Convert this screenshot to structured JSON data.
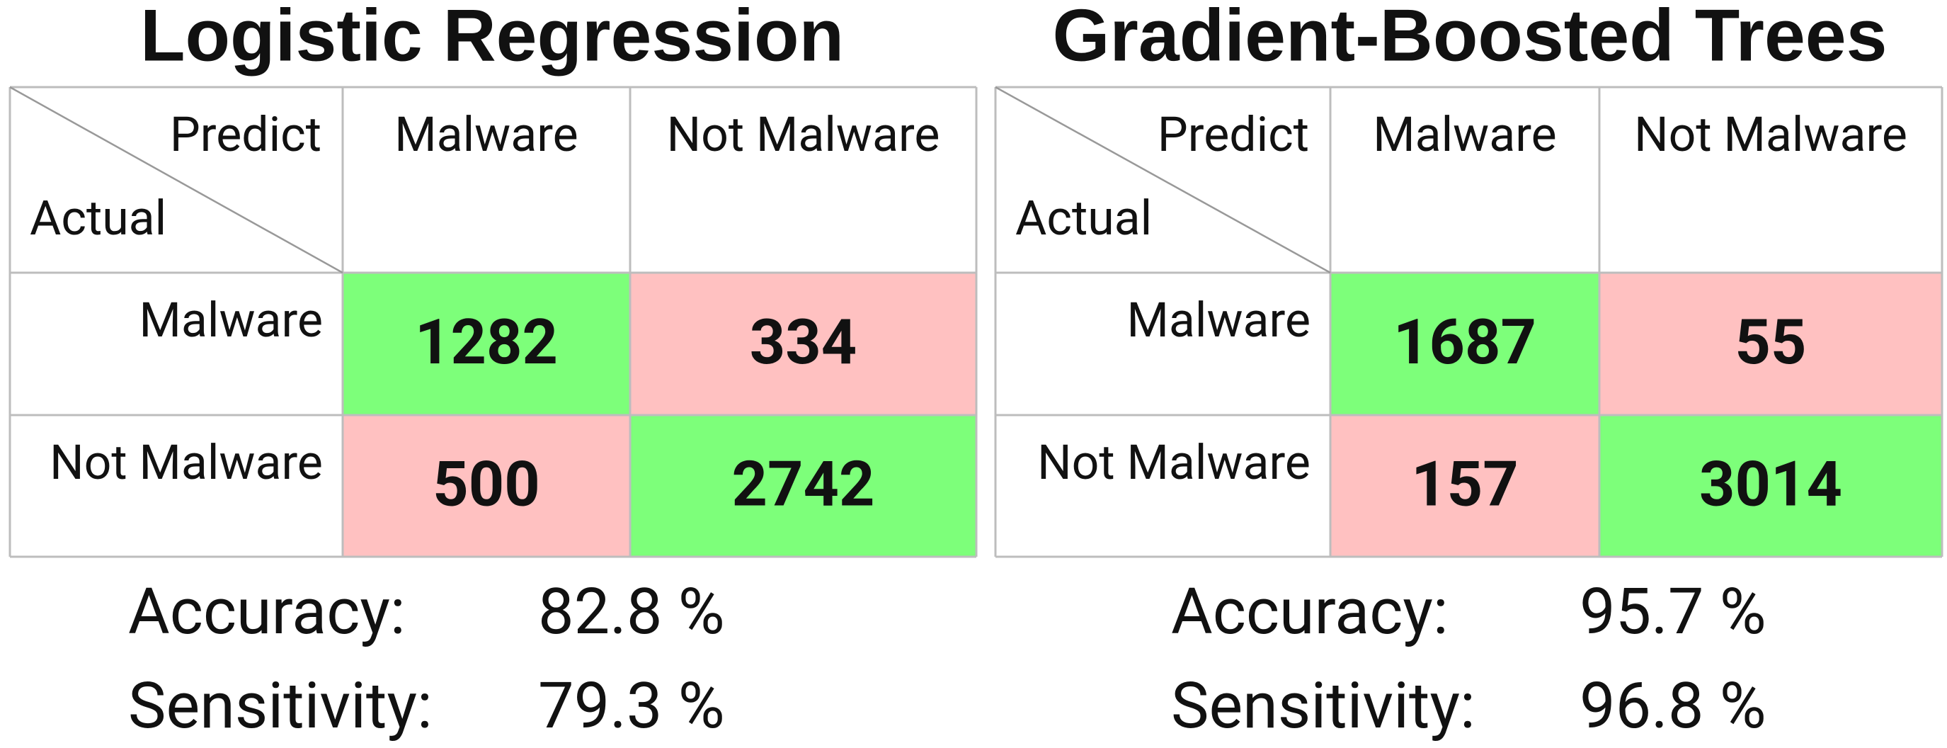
{
  "panels": [
    {
      "title": "Logistic Regression",
      "corner": {
        "top": "Predict",
        "bottom": "Actual"
      },
      "columns": [
        "Malware",
        "Not Malware"
      ],
      "rows": [
        {
          "label": "Malware",
          "cells": [
            1282,
            334
          ]
        },
        {
          "label": "Not Malware",
          "cells": [
            500,
            2742
          ]
        }
      ],
      "metrics": [
        {
          "label": "Accuracy:",
          "value": "82.8 %"
        },
        {
          "label": "Sensitivity:",
          "value": "79.3 %"
        }
      ]
    },
    {
      "title": "Gradient-Boosted Trees",
      "corner": {
        "top": "Predict",
        "bottom": "Actual"
      },
      "columns": [
        "Malware",
        "Not Malware"
      ],
      "rows": [
        {
          "label": "Malware",
          "cells": [
            1687,
            55
          ]
        },
        {
          "label": "Not Malware",
          "cells": [
            157,
            3014
          ]
        }
      ],
      "metrics": [
        {
          "label": "Accuracy:",
          "value": "95.7 %"
        },
        {
          "label": "Sensitivity:",
          "value": "96.8 %"
        }
      ]
    }
  ]
}
